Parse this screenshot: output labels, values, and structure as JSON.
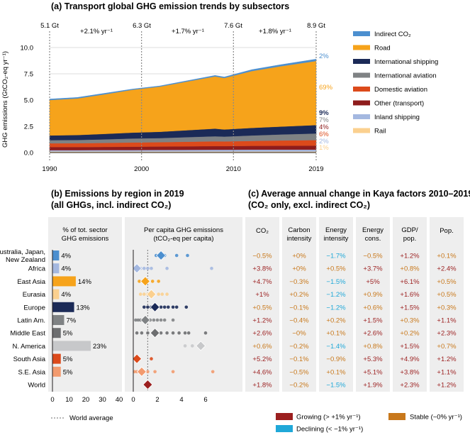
{
  "colors": {
    "indirect": "#4c8fcf",
    "road": "#f6a31b",
    "intl_shipping": "#1b2a57",
    "intl_aviation": "#7f8284",
    "dom_aviation": "#dc4a1b",
    "other": "#8e1c1c",
    "inland": "#a4b8e0",
    "rail": "#fbd08f",
    "growing": "#9b1f1f",
    "stable": "#c8781b",
    "declining": "#20a8d8",
    "panel_bg": "#eeeeee"
  },
  "panel_a": {
    "title": "(a) Transport global GHG emission trends by subsectors",
    "ylabel": "GHG emissions (GtCO₂-eq yr⁻¹)",
    "totals": [
      "5.1 Gt",
      "6.3 Gt",
      "7.6 Gt",
      "8.9 Gt"
    ],
    "growth": [
      "+2.1% yr⁻¹",
      "+1.7% yr⁻¹",
      "+1.8% yr⁻¹"
    ]
  },
  "panel_b": {
    "title_line1": "(b) Emissions by region in 2019",
    "title_line2": "(all GHGs, incl. indirect CO₂)",
    "share_header1": "% of tot. sector",
    "share_header2": "GHG emissions",
    "percap_header1": "Per capita GHG emissions",
    "percap_header2": "(tCO₂-eq per capita)",
    "share_ticks": [
      "0",
      "10",
      "20",
      "30",
      "40"
    ],
    "percap_ticks": [
      "0",
      "2",
      "4",
      "6"
    ],
    "world_avg_label": "World average"
  },
  "panel_c": {
    "title_line1": "(c) Average annual change in Kaya factors 2010–2019",
    "title_line2": "(CO₂ only, excl. indirect CO₂)",
    "headers": [
      "CO₂",
      "Carbon\nintensity",
      "Energy\nintensity",
      "Energy\ncons.",
      "GDP/\npop.",
      "Pop."
    ]
  },
  "legend_c": {
    "growing": "Growing (> +1% yr⁻¹)",
    "stable": "Stable (~0% yr⁻¹)",
    "declining": "Declining (< −1% yr⁻¹)"
  },
  "chart_data": [
    {
      "type": "area",
      "title": "(a) Transport global GHG emission trends by subsectors",
      "xlabel": "",
      "ylabel": "GHG emissions (GtCO₂-eq yr⁻¹)",
      "xlim": [
        1990,
        2019
      ],
      "ylim": [
        0,
        10
      ],
      "xticks": [
        "1990",
        "2000",
        "2010",
        "2019"
      ],
      "yticks": [
        "0.0",
        "2.5",
        "5.0",
        "7.5",
        "10.0"
      ],
      "x": [
        1990,
        1993,
        1996,
        1999,
        2002,
        2005,
        2008,
        2009,
        2012,
        2015,
        2019
      ],
      "total": [
        5.1,
        5.25,
        5.65,
        6.05,
        6.35,
        6.85,
        7.35,
        7.2,
        7.9,
        8.35,
        8.9
      ],
      "series": [
        {
          "name": "Rail",
          "key": "rail",
          "share_label": "1%",
          "values": [
            0.1,
            0.1,
            0.1,
            0.1,
            0.1,
            0.1,
            0.1,
            0.1,
            0.1,
            0.1,
            0.1
          ]
        },
        {
          "name": "Inland shipping",
          "key": "inland",
          "share_label": "2%",
          "values": [
            0.13,
            0.13,
            0.14,
            0.14,
            0.15,
            0.16,
            0.17,
            0.17,
            0.18,
            0.18,
            0.18
          ]
        },
        {
          "name": "Other (transport)",
          "key": "other",
          "share_label": "4%",
          "values": [
            0.3,
            0.3,
            0.3,
            0.32,
            0.33,
            0.34,
            0.35,
            0.35,
            0.36,
            0.37,
            0.38
          ]
        },
        {
          "name": "Domestic aviation",
          "key": "dom_aviation",
          "share_label": "6%",
          "values": [
            0.35,
            0.36,
            0.38,
            0.4,
            0.41,
            0.43,
            0.45,
            0.44,
            0.47,
            0.5,
            0.53
          ]
        },
        {
          "name": "International aviation",
          "key": "intl_aviation",
          "share_label": "7%",
          "values": [
            0.3,
            0.31,
            0.34,
            0.38,
            0.39,
            0.44,
            0.48,
            0.46,
            0.52,
            0.57,
            0.63
          ]
        },
        {
          "name": "International shipping",
          "key": "intl_shipping",
          "share_label": "9%",
          "values": [
            0.45,
            0.47,
            0.52,
            0.56,
            0.6,
            0.66,
            0.73,
            0.68,
            0.72,
            0.75,
            0.8
          ]
        },
        {
          "name": "Road",
          "key": "road",
          "share_label": "69%",
          "values": [
            3.37,
            3.48,
            3.77,
            4.08,
            4.3,
            4.64,
            4.97,
            4.9,
            5.41,
            5.73,
            6.1
          ]
        },
        {
          "name": "Indirect CO₂",
          "key": "indirect",
          "share_label": "2%",
          "values": [
            0.1,
            0.1,
            0.1,
            0.07,
            0.07,
            0.08,
            0.1,
            0.1,
            0.14,
            0.15,
            0.18
          ]
        }
      ]
    },
    {
      "type": "bar",
      "title": "(b) Emissions by region in 2019",
      "categories": [
        "Australia, Japan,\nNew Zealand",
        "Africa",
        "East Asia",
        "Eurasia",
        "Europe",
        "Latin Am.",
        "Middle East",
        "N. America",
        "South Asia",
        "S.E. Asia",
        "World"
      ],
      "values": [
        4,
        4,
        14,
        4,
        13,
        7,
        5,
        23,
        5,
        5,
        null
      ],
      "value_labels": [
        "4%",
        "4%",
        "14%",
        "4%",
        "13%",
        "7%",
        "5%",
        "23%",
        "5%",
        "5%",
        ""
      ],
      "colors": [
        "#4c8fcf",
        "#a4b8e0",
        "#f6a31b",
        "#fbd08f",
        "#1b2a57",
        "#7f8284",
        "#6d6e70",
        "#c7c8ca",
        "#dc4a1b",
        "#f29a6e",
        null
      ],
      "xlim": [
        0,
        40
      ]
    },
    {
      "type": "scatter",
      "title": "Per capita GHG emissions (tCO₂-eq per capita)",
      "xlim": [
        0,
        7
      ],
      "world_average": 1.2,
      "categories": [
        "Australia, Japan,\nNew Zealand",
        "Africa",
        "East Asia",
        "Eurasia",
        "Europe",
        "Latin Am.",
        "Middle East",
        "N. America",
        "South Asia",
        "S.E. Asia",
        "World"
      ],
      "averages": [
        2.3,
        0.3,
        1.0,
        1.5,
        1.8,
        1.0,
        1.8,
        5.6,
        0.3,
        0.7,
        1.2
      ],
      "countries": [
        [
          1.9,
          2.6,
          3.6,
          4.5
        ],
        [
          0.2,
          0.4,
          0.6,
          0.9,
          1.2,
          1.5,
          2.8,
          6.5
        ],
        [
          0.5,
          0.8,
          1.2,
          1.6,
          2.1
        ],
        [
          0.6,
          0.9,
          1.2,
          1.6,
          2.1,
          2.4,
          2.8
        ],
        [
          0.9,
          1.2,
          1.5,
          1.8,
          2.0,
          2.3,
          2.6,
          2.9,
          3.3,
          3.6,
          4.4
        ],
        [
          0.2,
          0.4,
          0.6,
          0.8,
          1.0,
          1.2,
          1.4,
          1.7,
          2.0,
          2.3,
          2.6,
          3.3
        ],
        [
          0.3,
          0.7,
          1.2,
          1.8,
          2.3,
          2.8,
          3.3,
          3.8,
          4.3,
          4.6,
          6.0
        ],
        [
          4.3,
          4.9,
          5.6
        ],
        [
          0.1,
          0.2,
          0.4,
          1.5
        ],
        [
          0.1,
          0.3,
          0.6,
          0.9,
          1.2,
          1.8,
          3.3,
          6.6
        ],
        []
      ]
    },
    {
      "type": "table",
      "title": "(c) Average annual change in Kaya factors 2010–2019",
      "columns": [
        "CO₂",
        "Carbon\nintensity",
        "Energy\nintensity",
        "Energy\ncons.",
        "GDP/\npop.",
        "Pop."
      ],
      "rows": [
        {
          "region": "Australia, Japan,\nNew Zealand",
          "cells": [
            [
              "−0.5%",
              "s"
            ],
            [
              "+0%",
              "s"
            ],
            [
              "−1.7%",
              "d"
            ],
            [
              "−0.5%",
              "s"
            ],
            [
              "+1.2%",
              "g"
            ],
            [
              "+0.1%",
              "s"
            ]
          ]
        },
        {
          "region": "Africa",
          "cells": [
            [
              "+3.8%",
              "g"
            ],
            [
              "+0%",
              "s"
            ],
            [
              "+0.5%",
              "s"
            ],
            [
              "+3.7%",
              "g"
            ],
            [
              "+0.8%",
              "s"
            ],
            [
              "+2.4%",
              "g"
            ]
          ]
        },
        {
          "region": "East Asia",
          "cells": [
            [
              "+4.7%",
              "g"
            ],
            [
              "−0.3%",
              "s"
            ],
            [
              "−1.5%",
              "d"
            ],
            [
              "+5%",
              "g"
            ],
            [
              "+6.1%",
              "g"
            ],
            [
              "+0.5%",
              "s"
            ]
          ]
        },
        {
          "region": "Eurasia",
          "cells": [
            [
              "+1%",
              "g"
            ],
            [
              "+0.2%",
              "s"
            ],
            [
              "−1.2%",
              "d"
            ],
            [
              "+0.9%",
              "s"
            ],
            [
              "+1.6%",
              "g"
            ],
            [
              "+0.5%",
              "s"
            ]
          ]
        },
        {
          "region": "Europe",
          "cells": [
            [
              "+0.5%",
              "s"
            ],
            [
              "−0.1%",
              "s"
            ],
            [
              "−1.2%",
              "d"
            ],
            [
              "+0.6%",
              "s"
            ],
            [
              "+1.5%",
              "g"
            ],
            [
              "+0.3%",
              "s"
            ]
          ]
        },
        {
          "region": "Latin Am.",
          "cells": [
            [
              "+1.2%",
              "g"
            ],
            [
              "−0.4%",
              "s"
            ],
            [
              "+0.2%",
              "s"
            ],
            [
              "+1.5%",
              "g"
            ],
            [
              "+0.3%",
              "s"
            ],
            [
              "+1.1%",
              "g"
            ]
          ]
        },
        {
          "region": "Middle East",
          "cells": [
            [
              "+2.6%",
              "g"
            ],
            [
              "−0%",
              "s"
            ],
            [
              "+0.1%",
              "s"
            ],
            [
              "+2.6%",
              "g"
            ],
            [
              "+0.2%",
              "s"
            ],
            [
              "+2.3%",
              "g"
            ]
          ]
        },
        {
          "region": "N. America",
          "cells": [
            [
              "+0.6%",
              "s"
            ],
            [
              "−0.2%",
              "s"
            ],
            [
              "−1.4%",
              "d"
            ],
            [
              "+0.8%",
              "s"
            ],
            [
              "+1.5%",
              "g"
            ],
            [
              "+0.7%",
              "s"
            ]
          ]
        },
        {
          "region": "South Asia",
          "cells": [
            [
              "+5.2%",
              "g"
            ],
            [
              "−0.1%",
              "s"
            ],
            [
              "−0.9%",
              "s"
            ],
            [
              "+5.3%",
              "g"
            ],
            [
              "+4.9%",
              "g"
            ],
            [
              "+1.2%",
              "g"
            ]
          ]
        },
        {
          "region": "S.E. Asia",
          "cells": [
            [
              "+4.6%",
              "g"
            ],
            [
              "−0.5%",
              "s"
            ],
            [
              "+0.1%",
              "s"
            ],
            [
              "+5.1%",
              "g"
            ],
            [
              "+3.8%",
              "g"
            ],
            [
              "+1.1%",
              "g"
            ]
          ]
        },
        {
          "region": "World",
          "cells": [
            [
              "+1.8%",
              "g"
            ],
            [
              "−0.2%",
              "s"
            ],
            [
              "−1.5%",
              "d"
            ],
            [
              "+1.9%",
              "g"
            ],
            [
              "+2.3%",
              "g"
            ],
            [
              "+1.2%",
              "g"
            ]
          ]
        }
      ]
    }
  ]
}
